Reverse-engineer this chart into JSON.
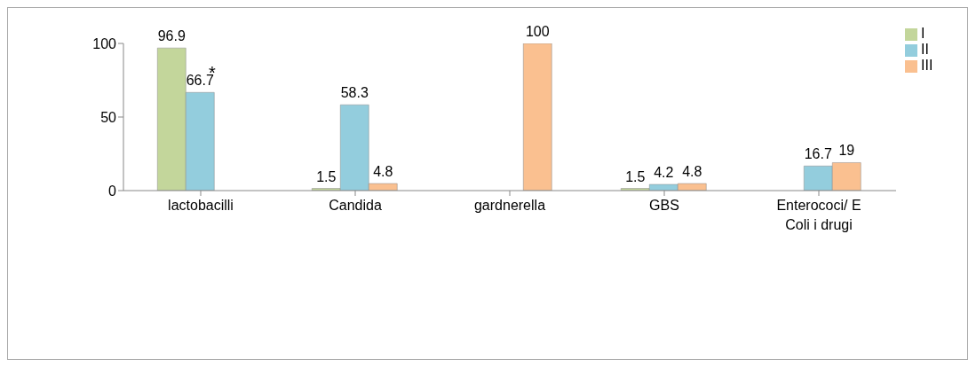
{
  "chart_data": {
    "type": "bar",
    "categories": [
      "lactobacilli",
      "Candida",
      "gardnerella",
      "GBS",
      "Enterococi/ E Coli i drugi"
    ],
    "series": [
      {
        "name": "I",
        "color": "#c3d69b",
        "values": [
          96.9,
          1.5,
          null,
          1.5,
          null
        ]
      },
      {
        "name": "II",
        "color": "#93cddd",
        "values": [
          66.7,
          58.3,
          null,
          4.2,
          16.7
        ]
      },
      {
        "name": "III",
        "color": "#fac090",
        "values": [
          null,
          4.8,
          100,
          4.8,
          19
        ]
      }
    ],
    "ylim": [
      0,
      100
    ],
    "yticks": [
      0,
      50,
      100
    ],
    "grid": false,
    "legend": "top right",
    "data_labels": true,
    "annotations": [
      "*"
    ]
  }
}
